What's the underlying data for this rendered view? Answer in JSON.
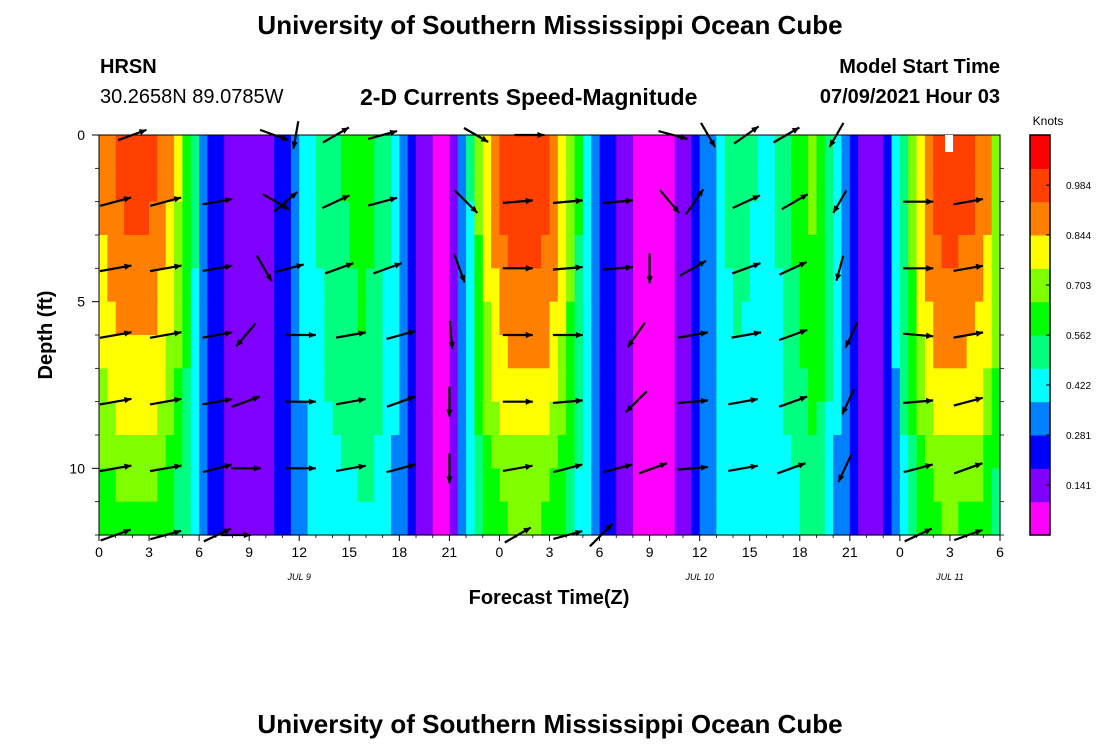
{
  "header": {
    "title": "University of Southern Mississippi Ocean Cube",
    "station": "HRSN",
    "coords": "30.2658N  89.0785W",
    "subtitle": "2-D Currents Speed-Magnitude",
    "start_label": "Model Start Time",
    "start_value": "07/09/2021 Hour 03"
  },
  "footer": {
    "title": "University of Southern Mississippi Ocean Cube"
  },
  "chart_data": {
    "type": "heatmap",
    "title": "2-D Currents Speed-Magnitude",
    "xlabel": "Forecast Time(Z)",
    "ylabel": "Depth (ft)",
    "x_ticks": [
      "0",
      "3",
      "6",
      "9",
      "12",
      "15",
      "18",
      "21",
      "0",
      "3",
      "6",
      "9",
      "12",
      "15",
      "18",
      "21",
      "0",
      "3",
      "6"
    ],
    "x_range_hours": [
      0,
      54
    ],
    "date_labels": [
      {
        "text": "JUL 9",
        "hour": 12
      },
      {
        "text": "JUL 10",
        "hour": 36
      },
      {
        "text": "JUL 11",
        "hour": 51
      }
    ],
    "y_ticks": [
      "0",
      "5",
      "10"
    ],
    "y_range": [
      0,
      12
    ],
    "y_reversed": true,
    "colorbar": {
      "label": "Knots",
      "ticks": [
        "0.984",
        "0.844",
        "0.703",
        "0.562",
        "0.422",
        "0.281",
        "0.141"
      ],
      "tick_values": [
        0.984,
        0.844,
        0.703,
        0.562,
        0.422,
        0.281,
        0.141
      ],
      "range": [
        0,
        1.125
      ]
    },
    "speed_profile": {
      "note": "surface speed (knots) vs forecast hour",
      "hours": [
        0,
        1,
        2,
        3,
        4,
        5,
        6,
        7,
        8,
        9,
        10,
        11,
        12,
        13,
        14,
        15,
        16,
        17,
        18,
        19,
        20,
        21,
        22,
        23,
        24,
        25,
        26,
        27,
        28,
        29,
        30,
        31,
        32,
        33,
        34,
        35,
        36,
        37,
        38,
        39,
        40,
        41,
        42,
        43,
        44,
        45,
        46,
        47,
        48,
        49,
        50,
        51,
        52,
        53,
        54
      ],
      "values": [
        0.9,
        0.97,
        1.0,
        1.0,
        0.92,
        0.72,
        0.4,
        0.2,
        0.12,
        0.08,
        0.12,
        0.22,
        0.35,
        0.46,
        0.54,
        0.58,
        0.62,
        0.52,
        0.35,
        0.15,
        0.04,
        0.03,
        0.35,
        0.8,
        0.98,
        1.05,
        1.05,
        1.0,
        0.8,
        0.5,
        0.25,
        0.16,
        0.06,
        0.0,
        0.0,
        0.08,
        0.22,
        0.4,
        0.5,
        0.48,
        0.42,
        0.5,
        0.62,
        0.72,
        0.45,
        0.2,
        0.05,
        0.15,
        0.45,
        0.8,
        1.0,
        1.05,
        1.02,
        0.95,
        0.7
      ]
    },
    "depth_factor": [
      1.0,
      1.0,
      0.97,
      0.92,
      0.88,
      0.85,
      0.8,
      0.75,
      0.7,
      0.62,
      0.55,
      0.5
    ],
    "vectors": [
      {
        "hour": 2,
        "depth": 0,
        "angle": -20,
        "len": 30
      },
      {
        "hour": 10.5,
        "depth": 0,
        "angle": 20,
        "len": 30
      },
      {
        "hour": 11.8,
        "depth": 0,
        "angle": 100,
        "len": 28
      },
      {
        "hour": 14.2,
        "depth": 0,
        "angle": -30,
        "len": 30
      },
      {
        "hour": 17,
        "depth": 0,
        "angle": -15,
        "len": 30
      },
      {
        "hour": 22.6,
        "depth": 0,
        "angle": 30,
        "len": 28
      },
      {
        "hour": 25.8,
        "depth": 0,
        "angle": 0,
        "len": 30
      },
      {
        "hour": 34.4,
        "depth": 0,
        "angle": 15,
        "len": 30
      },
      {
        "hour": 36.5,
        "depth": 0,
        "angle": 60,
        "len": 28
      },
      {
        "hour": 38.8,
        "depth": 0,
        "angle": -35,
        "len": 30
      },
      {
        "hour": 41.2,
        "depth": 0,
        "angle": -30,
        "len": 30
      },
      {
        "hour": 44.2,
        "depth": 0,
        "angle": 120,
        "len": 28
      },
      {
        "hour": 1,
        "depth": 2,
        "angle": -15,
        "len": 32
      },
      {
        "hour": 4,
        "depth": 2,
        "angle": -15,
        "len": 32
      },
      {
        "hour": 7.1,
        "depth": 2,
        "angle": -10,
        "len": 30
      },
      {
        "hour": 10.6,
        "depth": 2,
        "angle": 30,
        "len": 30
      },
      {
        "hour": 11.2,
        "depth": 2,
        "angle": -40,
        "len": 30
      },
      {
        "hour": 14.2,
        "depth": 2,
        "angle": -25,
        "len": 30
      },
      {
        "hour": 17,
        "depth": 2,
        "angle": -15,
        "len": 30
      },
      {
        "hour": 22,
        "depth": 2,
        "angle": 45,
        "len": 32
      },
      {
        "hour": 25.1,
        "depth": 2,
        "angle": -5,
        "len": 30
      },
      {
        "hour": 28.1,
        "depth": 2,
        "angle": -5,
        "len": 30
      },
      {
        "hour": 31.1,
        "depth": 2,
        "angle": -5,
        "len": 30
      },
      {
        "hour": 34.2,
        "depth": 2,
        "angle": 50,
        "len": 30
      },
      {
        "hour": 35.7,
        "depth": 2,
        "angle": -55,
        "len": 30
      },
      {
        "hour": 38.8,
        "depth": 2,
        "angle": -25,
        "len": 30
      },
      {
        "hour": 41.7,
        "depth": 2,
        "angle": -30,
        "len": 30
      },
      {
        "hour": 44.4,
        "depth": 2,
        "angle": 120,
        "len": 26
      },
      {
        "hour": 49.1,
        "depth": 2,
        "angle": 0,
        "len": 30
      },
      {
        "hour": 52.1,
        "depth": 2,
        "angle": -10,
        "len": 30
      },
      {
        "hour": 1,
        "depth": 4,
        "angle": -10,
        "len": 32
      },
      {
        "hour": 4,
        "depth": 4,
        "angle": -10,
        "len": 32
      },
      {
        "hour": 7.1,
        "depth": 4,
        "angle": -10,
        "len": 30
      },
      {
        "hour": 9.9,
        "depth": 4,
        "angle": 60,
        "len": 30
      },
      {
        "hour": 11.4,
        "depth": 4,
        "angle": -15,
        "len": 30
      },
      {
        "hour": 14.4,
        "depth": 4,
        "angle": -20,
        "len": 30
      },
      {
        "hour": 17.3,
        "depth": 4,
        "angle": -20,
        "len": 30
      },
      {
        "hour": 21.6,
        "depth": 4,
        "angle": 70,
        "len": 30
      },
      {
        "hour": 25.1,
        "depth": 4,
        "angle": 0,
        "len": 30
      },
      {
        "hour": 28.1,
        "depth": 4,
        "angle": -5,
        "len": 30
      },
      {
        "hour": 31.1,
        "depth": 4,
        "angle": -5,
        "len": 30
      },
      {
        "hour": 33,
        "depth": 4,
        "angle": 90,
        "len": 30
      },
      {
        "hour": 35.6,
        "depth": 4,
        "angle": -30,
        "len": 30
      },
      {
        "hour": 38.8,
        "depth": 4,
        "angle": -20,
        "len": 30
      },
      {
        "hour": 41.6,
        "depth": 4,
        "angle": -25,
        "len": 30
      },
      {
        "hour": 44.4,
        "depth": 4,
        "angle": 105,
        "len": 26
      },
      {
        "hour": 49.1,
        "depth": 4,
        "angle": 0,
        "len": 30
      },
      {
        "hour": 52.1,
        "depth": 4,
        "angle": -10,
        "len": 30
      },
      {
        "hour": 1,
        "depth": 6,
        "angle": -10,
        "len": 32
      },
      {
        "hour": 4,
        "depth": 6,
        "angle": -10,
        "len": 32
      },
      {
        "hour": 7.1,
        "depth": 6,
        "angle": -10,
        "len": 30
      },
      {
        "hour": 8.8,
        "depth": 6,
        "angle": 130,
        "len": 30
      },
      {
        "hour": 12.1,
        "depth": 6,
        "angle": 0,
        "len": 30
      },
      {
        "hour": 15.1,
        "depth": 6,
        "angle": -10,
        "len": 30
      },
      {
        "hour": 18.1,
        "depth": 6,
        "angle": -15,
        "len": 30
      },
      {
        "hour": 21.1,
        "depth": 6,
        "angle": 85,
        "len": 28
      },
      {
        "hour": 25.1,
        "depth": 6,
        "angle": 0,
        "len": 30
      },
      {
        "hour": 28.1,
        "depth": 6,
        "angle": 0,
        "len": 30
      },
      {
        "hour": 32.2,
        "depth": 6,
        "angle": 125,
        "len": 30
      },
      {
        "hour": 35.6,
        "depth": 6,
        "angle": -10,
        "len": 30
      },
      {
        "hour": 38.8,
        "depth": 6,
        "angle": -10,
        "len": 30
      },
      {
        "hour": 41.6,
        "depth": 6,
        "angle": -20,
        "len": 30
      },
      {
        "hour": 45.1,
        "depth": 6,
        "angle": 115,
        "len": 28
      },
      {
        "hour": 49.1,
        "depth": 6,
        "angle": 5,
        "len": 30
      },
      {
        "hour": 52.1,
        "depth": 6,
        "angle": -10,
        "len": 30
      },
      {
        "hour": 1,
        "depth": 8,
        "angle": -10,
        "len": 32
      },
      {
        "hour": 4,
        "depth": 8,
        "angle": -10,
        "len": 32
      },
      {
        "hour": 7.1,
        "depth": 8,
        "angle": -10,
        "len": 30
      },
      {
        "hour": 8.8,
        "depth": 8,
        "angle": -20,
        "len": 30
      },
      {
        "hour": 12.1,
        "depth": 8,
        "angle": 0,
        "len": 30
      },
      {
        "hour": 15.1,
        "depth": 8,
        "angle": -10,
        "len": 30
      },
      {
        "hour": 18.1,
        "depth": 8,
        "angle": -20,
        "len": 30
      },
      {
        "hour": 21,
        "depth": 8,
        "angle": 90,
        "len": 30
      },
      {
        "hour": 25.1,
        "depth": 8,
        "angle": 0,
        "len": 30
      },
      {
        "hour": 28.1,
        "depth": 8,
        "angle": -5,
        "len": 30
      },
      {
        "hour": 32.2,
        "depth": 8,
        "angle": 135,
        "len": 30
      },
      {
        "hour": 35.6,
        "depth": 8,
        "angle": -5,
        "len": 30
      },
      {
        "hour": 38.6,
        "depth": 8,
        "angle": -10,
        "len": 30
      },
      {
        "hour": 41.6,
        "depth": 8,
        "angle": -20,
        "len": 30
      },
      {
        "hour": 44.9,
        "depth": 8,
        "angle": 115,
        "len": 28
      },
      {
        "hour": 49.1,
        "depth": 8,
        "angle": -5,
        "len": 30
      },
      {
        "hour": 52.1,
        "depth": 8,
        "angle": -15,
        "len": 30
      },
      {
        "hour": 1,
        "depth": 10,
        "angle": -10,
        "len": 32
      },
      {
        "hour": 4,
        "depth": 10,
        "angle": -10,
        "len": 32
      },
      {
        "hour": 7.1,
        "depth": 10,
        "angle": -15,
        "len": 30
      },
      {
        "hour": 8.8,
        "depth": 10,
        "angle": 0,
        "len": 30
      },
      {
        "hour": 12.1,
        "depth": 10,
        "angle": 0,
        "len": 30
      },
      {
        "hour": 15.1,
        "depth": 10,
        "angle": -10,
        "len": 30
      },
      {
        "hour": 18.1,
        "depth": 10,
        "angle": -15,
        "len": 30
      },
      {
        "hour": 21,
        "depth": 10,
        "angle": 90,
        "len": 30
      },
      {
        "hour": 25.1,
        "depth": 10,
        "angle": -10,
        "len": 30
      },
      {
        "hour": 28.1,
        "depth": 10,
        "angle": -15,
        "len": 30
      },
      {
        "hour": 31.1,
        "depth": 10,
        "angle": -15,
        "len": 30
      },
      {
        "hour": 33.2,
        "depth": 10,
        "angle": -20,
        "len": 30
      },
      {
        "hour": 35.6,
        "depth": 10,
        "angle": -5,
        "len": 30
      },
      {
        "hour": 38.6,
        "depth": 10,
        "angle": -10,
        "len": 30
      },
      {
        "hour": 41.5,
        "depth": 10,
        "angle": -20,
        "len": 30
      },
      {
        "hour": 44.7,
        "depth": 10,
        "angle": 115,
        "len": 30
      },
      {
        "hour": 49.1,
        "depth": 10,
        "angle": -15,
        "len": 30
      },
      {
        "hour": 52.1,
        "depth": 10,
        "angle": -20,
        "len": 30
      },
      {
        "hour": 1,
        "depth": 12,
        "angle": -20,
        "len": 32
      },
      {
        "hour": 4,
        "depth": 12,
        "angle": -15,
        "len": 32
      },
      {
        "hour": 7.1,
        "depth": 12,
        "angle": -25,
        "len": 30
      },
      {
        "hour": 8.2,
        "depth": 12,
        "angle": 0,
        "len": 30
      },
      {
        "hour": 25.1,
        "depth": 12,
        "angle": -30,
        "len": 30
      },
      {
        "hour": 28.1,
        "depth": 12,
        "angle": -15,
        "len": 30
      },
      {
        "hour": 30.1,
        "depth": 12,
        "angle": -45,
        "len": 32
      },
      {
        "hour": 49.1,
        "depth": 12,
        "angle": -25,
        "len": 30
      },
      {
        "hour": 52.1,
        "depth": 12,
        "angle": -20,
        "len": 30
      }
    ],
    "colors": {
      "scale": [
        "#ff00ff",
        "#8000ff",
        "#0000ff",
        "#0080ff",
        "#00ffff",
        "#00ff80",
        "#00ff00",
        "#80ff00",
        "#ffff00",
        "#ff8000",
        "#ff4000",
        "#ff0000"
      ],
      "frame": "#000000",
      "marker": "#ffffff"
    }
  }
}
